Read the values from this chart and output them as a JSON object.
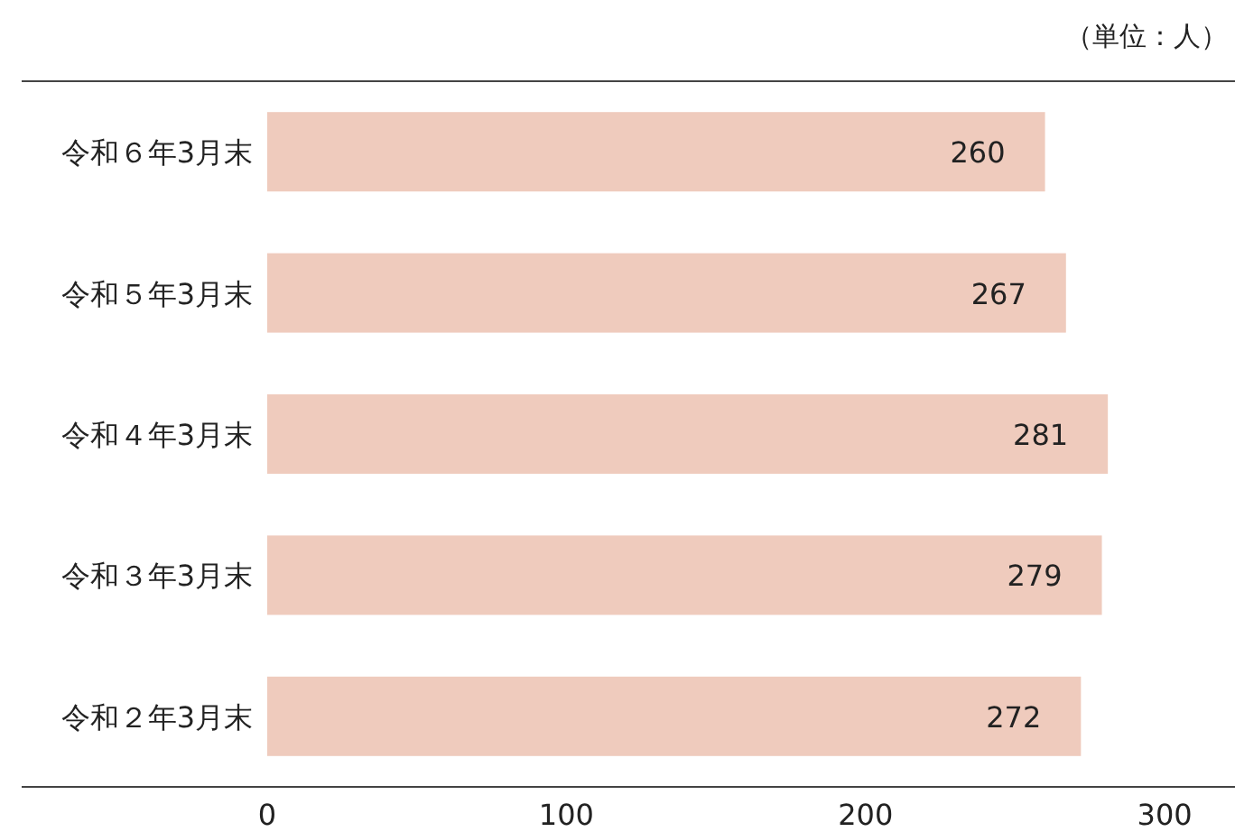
{
  "chart_data": {
    "type": "bar",
    "orientation": "horizontal",
    "annotations": [
      "（単位：人）"
    ],
    "categories": [
      "令和６年3月末",
      "令和５年3月末",
      "令和４年3月末",
      "令和３年3月末",
      "令和２年3月末"
    ],
    "values": [
      260,
      267,
      281,
      279,
      272
    ],
    "color": "#efcbbd",
    "xlim": [
      0,
      323.5
    ],
    "xticks": [
      0,
      100,
      200,
      300
    ],
    "data_labels": true,
    "grid": false
  }
}
